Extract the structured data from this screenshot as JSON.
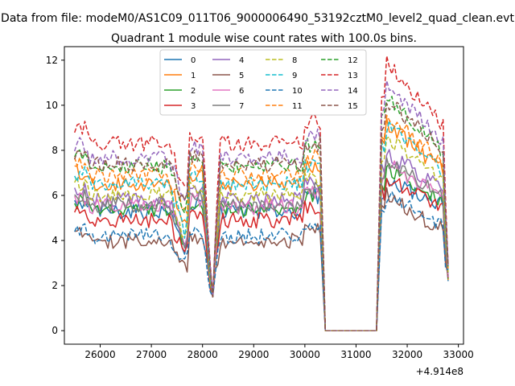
{
  "chart_data": {
    "type": "line",
    "suptitle": "Data from file: modeM0/AS1C09_011T06_9000006490_53192cztM0_level2_quad_clean.evt",
    "title": "Quadrant 1 module wise count rates with 100.0s bins.",
    "xlabel": "",
    "ylabel": "",
    "x_offset_label": "+4.914e8",
    "xlim": [
      25300,
      33100
    ],
    "ylim": [
      -0.6,
      12.6
    ],
    "x_ticks": [
      26000,
      27000,
      28000,
      29000,
      30000,
      31000,
      32000,
      33000
    ],
    "y_ticks": [
      0,
      2,
      4,
      6,
      8,
      10,
      12
    ],
    "legend_position": "upper center",
    "gap": [
      30400,
      31400
    ],
    "x_range_1": [
      25500,
      30300
    ],
    "x_range_2": [
      31500,
      32800
    ],
    "series": [
      {
        "name": "0",
        "color": "#1f77b4",
        "style": "solid",
        "base": 5.3,
        "dip": 3.6,
        "spike": 6.6
      },
      {
        "name": "1",
        "color": "#ff7f0e",
        "style": "solid",
        "base": 6.5,
        "dip": 4.8,
        "spike": 9.2
      },
      {
        "name": "2",
        "color": "#2ca02c",
        "style": "solid",
        "base": 5.4,
        "dip": 3.7,
        "spike": 7.2
      },
      {
        "name": "3",
        "color": "#d62728",
        "style": "solid",
        "base": 4.9,
        "dip": 3.3,
        "spike": 6.8
      },
      {
        "name": "4",
        "color": "#9467bd",
        "style": "solid",
        "base": 5.8,
        "dip": 3.9,
        "spike": 7.9
      },
      {
        "name": "5",
        "color": "#8c564b",
        "style": "solid",
        "base": 4.0,
        "dip": 2.7,
        "spike": 6.0
      },
      {
        "name": "6",
        "color": "#e377c2",
        "style": "solid",
        "base": 5.5,
        "dip": 3.8,
        "spike": 7.4
      },
      {
        "name": "7",
        "color": "#7f7f7f",
        "style": "solid",
        "base": 5.6,
        "dip": 3.9,
        "spike": 7.5
      },
      {
        "name": "8",
        "color": "#bcbd22",
        "style": "dashed",
        "base": 6.0,
        "dip": 4.0,
        "spike": 8.6
      },
      {
        "name": "9",
        "color": "#17becf",
        "style": "dashed",
        "base": 6.5,
        "dip": 4.4,
        "spike": 9.1
      },
      {
        "name": "10",
        "color": "#1f77b4",
        "style": "dashed",
        "base": 4.2,
        "dip": 2.9,
        "spike": 6.0
      },
      {
        "name": "11",
        "color": "#ff7f0e",
        "style": "dashed",
        "base": 6.9,
        "dip": 5.1,
        "spike": 9.6
      },
      {
        "name": "12",
        "color": "#2ca02c",
        "style": "dashed",
        "base": 7.3,
        "dip": 5.4,
        "spike": 10.4
      },
      {
        "name": "13",
        "color": "#d62728",
        "style": "dashed",
        "base": 8.3,
        "dip": 6.2,
        "spike": 11.9
      },
      {
        "name": "14",
        "color": "#9467bd",
        "style": "dashed",
        "base": 7.7,
        "dip": 5.8,
        "spike": 10.9
      },
      {
        "name": "15",
        "color": "#8c564b",
        "style": "dashed",
        "base": 7.4,
        "dip": 5.5,
        "spike": 10.2
      }
    ]
  }
}
